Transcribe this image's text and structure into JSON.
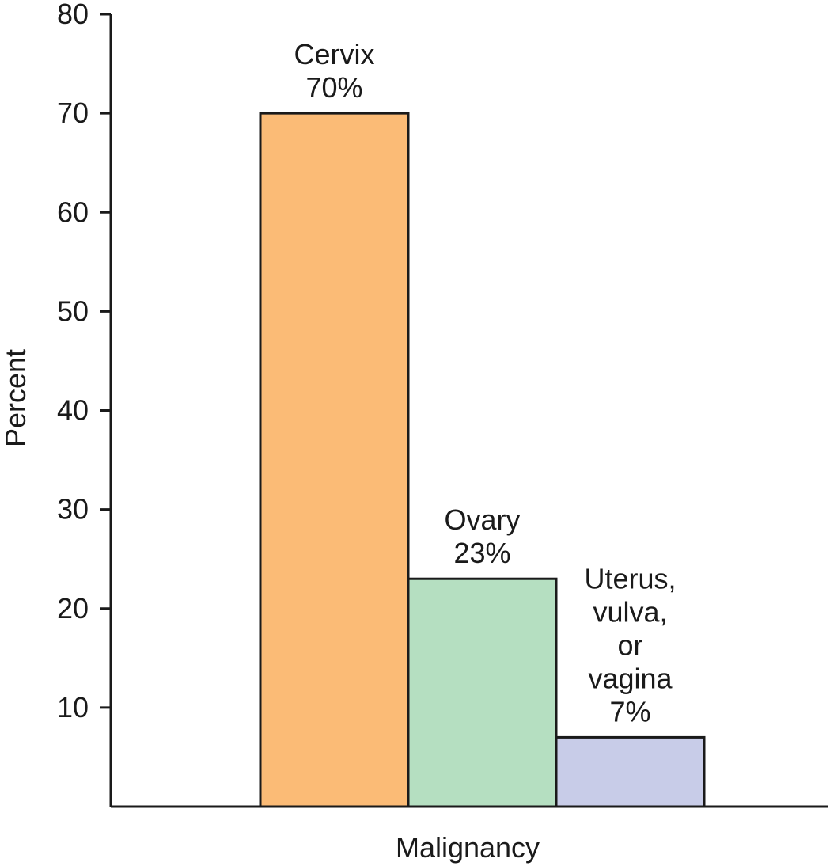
{
  "chart_data": {
    "type": "bar",
    "title": "",
    "xlabel": "Malignancy",
    "ylabel": "Percent",
    "ylim": [
      0,
      80
    ],
    "yticks": [
      10,
      20,
      30,
      40,
      50,
      60,
      70,
      80
    ],
    "grid": false,
    "legend": "none",
    "categories": [
      "Cervix",
      "Ovary",
      "Uterus, vulva, or vagina"
    ],
    "values": [
      70,
      23,
      7
    ],
    "bar_labels": [
      [
        "Cervix",
        "70%"
      ],
      [
        "Ovary",
        "23%"
      ],
      [
        "Uterus,",
        "vulva,",
        "or",
        "vagina",
        "7%"
      ]
    ],
    "colors": [
      "#fbbb76",
      "#b5dfc1",
      "#c8cce8"
    ],
    "outline_color": "#1a1a1a"
  }
}
